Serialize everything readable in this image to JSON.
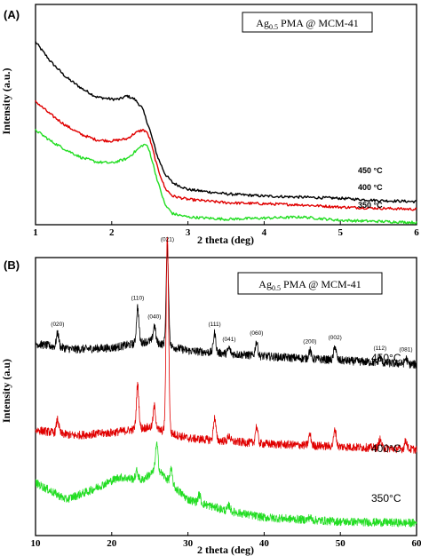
{
  "chart_data": [
    {
      "panel": "(A)",
      "type": "line",
      "title": "Ag0.5 PMA @ MCM-41",
      "title_main": "Ag",
      "title_sub": "0.5",
      "title_rest": " PMA @ MCM-41",
      "xlabel": "2 theta (deg)",
      "ylabel": "Intensity (a.u.)",
      "xlim": [
        1,
        6
      ],
      "xticks": [
        1,
        2,
        3,
        4,
        5,
        6
      ],
      "grid": false,
      "legend": "top-right",
      "series": [
        {
          "name": "450 °C",
          "color": "#000000",
          "points": [
            [
              1.0,
              0.83
            ],
            [
              1.2,
              0.74
            ],
            [
              1.4,
              0.67
            ],
            [
              1.6,
              0.62
            ],
            [
              1.8,
              0.58
            ],
            [
              2.0,
              0.57
            ],
            [
              2.1,
              0.57
            ],
            [
              2.2,
              0.585
            ],
            [
              2.3,
              0.57
            ],
            [
              2.4,
              0.53
            ],
            [
              2.5,
              0.43
            ],
            [
              2.6,
              0.31
            ],
            [
              2.7,
              0.23
            ],
            [
              2.8,
              0.19
            ],
            [
              3.0,
              0.16
            ],
            [
              3.5,
              0.14
            ],
            [
              4.0,
              0.13
            ],
            [
              4.5,
              0.125
            ],
            [
              5.0,
              0.12
            ],
            [
              5.5,
              0.11
            ],
            [
              6.0,
              0.105
            ]
          ]
        },
        {
          "name": "400 °C",
          "color": "#e00000",
          "points": [
            [
              1.0,
              0.56
            ],
            [
              1.2,
              0.5
            ],
            [
              1.4,
              0.45
            ],
            [
              1.6,
              0.41
            ],
            [
              1.8,
              0.385
            ],
            [
              2.0,
              0.38
            ],
            [
              2.2,
              0.39
            ],
            [
              2.3,
              0.415
            ],
            [
              2.4,
              0.43
            ],
            [
              2.45,
              0.425
            ],
            [
              2.5,
              0.39
            ],
            [
              2.6,
              0.26
            ],
            [
              2.7,
              0.165
            ],
            [
              2.8,
              0.13
            ],
            [
              3.0,
              0.115
            ],
            [
              3.5,
              0.1
            ],
            [
              4.0,
              0.095
            ],
            [
              4.5,
              0.09
            ],
            [
              5.0,
              0.08
            ],
            [
              5.5,
              0.075
            ],
            [
              6.0,
              0.07
            ]
          ]
        },
        {
          "name": "350 °C",
          "color": "#22dd22",
          "points": [
            [
              1.0,
              0.43
            ],
            [
              1.2,
              0.38
            ],
            [
              1.4,
              0.34
            ],
            [
              1.6,
              0.305
            ],
            [
              1.8,
              0.285
            ],
            [
              2.0,
              0.28
            ],
            [
              2.2,
              0.3
            ],
            [
              2.3,
              0.33
            ],
            [
              2.4,
              0.36
            ],
            [
              2.45,
              0.365
            ],
            [
              2.5,
              0.33
            ],
            [
              2.6,
              0.2
            ],
            [
              2.7,
              0.09
            ],
            [
              2.8,
              0.05
            ],
            [
              3.0,
              0.035
            ],
            [
              3.5,
              0.025
            ],
            [
              4.0,
              0.03
            ],
            [
              4.5,
              0.035
            ],
            [
              5.0,
              0.02
            ],
            [
              5.5,
              0.015
            ],
            [
              6.0,
              0.01
            ]
          ]
        }
      ]
    },
    {
      "panel": "(B)",
      "type": "line",
      "title": "Ag0.5 PMA @ MCM-41",
      "title_main": "Ag",
      "title_sub": "0.5",
      "title_rest": " PMA @ MCM-41",
      "xlabel": "2 theta (deg)",
      "ylabel": "Intensity (a.u)",
      "xlim": [
        10,
        60
      ],
      "xticks": [
        10,
        20,
        30,
        40,
        50,
        60
      ],
      "grid": false,
      "legend": "top-right",
      "peak_labels": [
        {
          "label": "(020)",
          "x": 12.9
        },
        {
          "label": "(110)",
          "x": 23.4
        },
        {
          "label": "(040)",
          "x": 25.6
        },
        {
          "label": "(021)",
          "x": 27.3
        },
        {
          "label": "(111)",
          "x": 33.5
        },
        {
          "label": "(041)",
          "x": 35.4
        },
        {
          "label": "(060)",
          "x": 39.0
        },
        {
          "label": "(200)",
          "x": 46.0
        },
        {
          "label": "(002)",
          "x": 49.3
        },
        {
          "label": "(112)",
          "x": 55.2
        },
        {
          "label": "(081)",
          "x": 58.6
        }
      ],
      "series": [
        {
          "name": "450°C",
          "color": "#000000",
          "baseline": [
            [
              10,
              0.69
            ],
            [
              15,
              0.67
            ],
            [
              20,
              0.675
            ],
            [
              25,
              0.7
            ],
            [
              30,
              0.665
            ],
            [
              35,
              0.655
            ],
            [
              40,
              0.645
            ],
            [
              50,
              0.63
            ],
            [
              60,
              0.615
            ]
          ],
          "peaks": [
            [
              12.9,
              0.05
            ],
            [
              23.4,
              0.13
            ],
            [
              25.6,
              0.06
            ],
            [
              27.3,
              0.35
            ],
            [
              33.5,
              0.07
            ],
            [
              35.4,
              0.02
            ],
            [
              39.0,
              0.05
            ],
            [
              46.0,
              0.03
            ],
            [
              49.3,
              0.05
            ],
            [
              55.2,
              0.02
            ],
            [
              58.6,
              0.02
            ]
          ]
        },
        {
          "name": "400°C",
          "color": "#e00000",
          "baseline": [
            [
              10,
              0.38
            ],
            [
              15,
              0.36
            ],
            [
              20,
              0.37
            ],
            [
              25,
              0.39
            ],
            [
              30,
              0.35
            ],
            [
              35,
              0.34
            ],
            [
              40,
              0.33
            ],
            [
              50,
              0.32
            ],
            [
              60,
              0.31
            ]
          ],
          "peaks": [
            [
              12.9,
              0.05
            ],
            [
              23.4,
              0.16
            ],
            [
              25.6,
              0.08
            ],
            [
              27.3,
              0.71
            ],
            [
              33.5,
              0.08
            ],
            [
              35.4,
              0.02
            ],
            [
              39.0,
              0.06
            ],
            [
              46.0,
              0.04
            ],
            [
              49.3,
              0.06
            ],
            [
              55.2,
              0.03
            ],
            [
              58.6,
              0.03
            ]
          ]
        },
        {
          "name": "350°C",
          "color": "#22dd22",
          "baseline": [
            [
              10,
              0.19
            ],
            [
              14,
              0.13
            ],
            [
              17,
              0.16
            ],
            [
              21,
              0.21
            ],
            [
              24,
              0.2
            ],
            [
              26,
              0.24
            ],
            [
              28,
              0.18
            ],
            [
              30,
              0.13
            ],
            [
              35,
              0.09
            ],
            [
              40,
              0.065
            ],
            [
              50,
              0.05
            ],
            [
              60,
              0.045
            ]
          ],
          "peaks": [
            [
              23.3,
              0.03
            ],
            [
              25.9,
              0.09
            ],
            [
              27.8,
              0.05
            ],
            [
              31.5,
              0.03
            ],
            [
              35.4,
              0.02
            ],
            [
              46.0,
              0.01
            ]
          ]
        }
      ]
    }
  ]
}
